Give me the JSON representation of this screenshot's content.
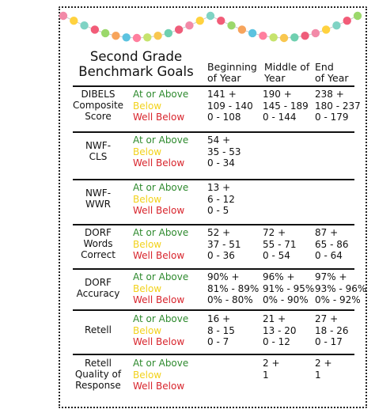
{
  "title_line1": "Second Grade",
  "title_line2": "Benchmark Goals",
  "columns": {
    "beginning_line1": "Beginning",
    "beginning_line2": "of Year",
    "middle_line1": "Middle of",
    "middle_line2": "Year",
    "end_line1": "End",
    "end_line2": "of Year"
  },
  "levels": {
    "above": "At or Above",
    "below": "Below",
    "well": "Well Below"
  },
  "rows": [
    {
      "cat": [
        "DIBELS",
        "Composite",
        "Score"
      ],
      "boy": [
        "141 +",
        "109 - 140",
        "0 - 108"
      ],
      "moy": [
        "190 +",
        "145 - 189",
        "0 - 144"
      ],
      "eoy": [
        "238 +",
        "180 - 237",
        "0 - 179"
      ]
    },
    {
      "cat": [
        "NWF-",
        "CLS"
      ],
      "boy": [
        "54 +",
        "35 - 53",
        "0 - 34"
      ],
      "moy": [
        "",
        "",
        ""
      ],
      "eoy": [
        "",
        "",
        ""
      ]
    },
    {
      "cat": [
        "NWF-",
        "WWR"
      ],
      "boy": [
        "13 +",
        "6 - 12",
        "0 - 5"
      ],
      "moy": [
        "",
        "",
        ""
      ],
      "eoy": [
        "",
        "",
        ""
      ]
    },
    {
      "cat": [
        "DORF",
        "Words",
        "Correct"
      ],
      "boy": [
        "52 +",
        "37 - 51",
        "0 - 36"
      ],
      "moy": [
        "72 +",
        "55 - 71",
        "0 - 54"
      ],
      "eoy": [
        "87 +",
        "65 - 86",
        "0 - 64"
      ]
    },
    {
      "cat": [
        "DORF",
        "Accuracy"
      ],
      "boy": [
        "90% +",
        "81% - 89%",
        "0% - 80%"
      ],
      "moy": [
        "96% +",
        "91% - 95%",
        "0% - 90%"
      ],
      "eoy": [
        "97% +",
        "93% - 96%",
        "0% - 92%"
      ]
    },
    {
      "cat": [
        "Retell"
      ],
      "boy": [
        "16 +",
        "8 - 15",
        "0 - 7"
      ],
      "moy": [
        "21 +",
        "13 - 20",
        "0 - 12"
      ],
      "eoy": [
        "27 +",
        "18 - 26",
        "0 - 17"
      ]
    },
    {
      "cat": [
        "Retell",
        "Quality of",
        "Response"
      ],
      "boy": [
        "",
        "",
        ""
      ],
      "moy": [
        "2 +",
        "1",
        ""
      ],
      "eoy": [
        "2 +",
        "1",
        ""
      ]
    }
  ]
}
